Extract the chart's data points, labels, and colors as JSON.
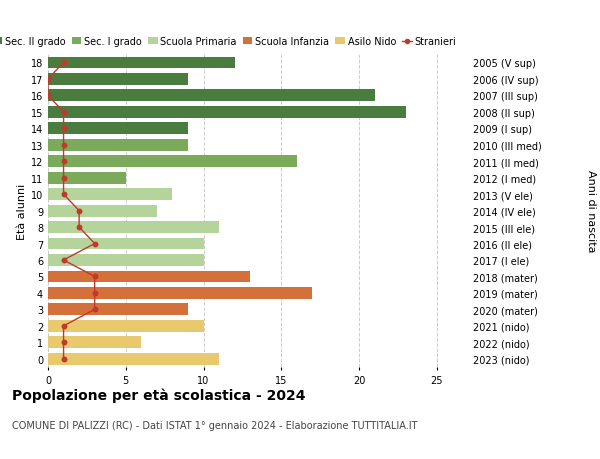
{
  "ages": [
    18,
    17,
    16,
    15,
    14,
    13,
    12,
    11,
    10,
    9,
    8,
    7,
    6,
    5,
    4,
    3,
    2,
    1,
    0
  ],
  "years": [
    "2005 (V sup)",
    "2006 (IV sup)",
    "2007 (III sup)",
    "2008 (II sup)",
    "2009 (I sup)",
    "2010 (III med)",
    "2011 (II med)",
    "2012 (I med)",
    "2013 (V ele)",
    "2014 (IV ele)",
    "2015 (III ele)",
    "2016 (II ele)",
    "2017 (I ele)",
    "2018 (mater)",
    "2019 (mater)",
    "2020 (mater)",
    "2021 (nido)",
    "2022 (nido)",
    "2023 (nido)"
  ],
  "bar_values": [
    12,
    9,
    21,
    23,
    9,
    9,
    16,
    5,
    8,
    7,
    11,
    10,
    10,
    13,
    17,
    9,
    10,
    6,
    11
  ],
  "bar_colors": [
    "#4a7c3f",
    "#4a7c3f",
    "#4a7c3f",
    "#4a7c3f",
    "#4a7c3f",
    "#7aaa5a",
    "#7aaa5a",
    "#7aaa5a",
    "#b5d49b",
    "#b5d49b",
    "#b5d49b",
    "#b5d49b",
    "#b5d49b",
    "#d4703a",
    "#d4703a",
    "#d4703a",
    "#e8c96e",
    "#e8c96e",
    "#e8c96e"
  ],
  "stranieri_x": [
    1,
    0,
    0,
    1,
    1,
    1,
    1,
    1,
    1,
    2,
    2,
    3,
    1,
    3,
    3,
    3,
    1,
    1,
    1
  ],
  "legend_labels": [
    "Sec. II grado",
    "Sec. I grado",
    "Scuola Primaria",
    "Scuola Infanzia",
    "Asilo Nido",
    "Stranieri"
  ],
  "legend_colors": [
    "#4a7c3f",
    "#7aaa5a",
    "#b5d49b",
    "#d4703a",
    "#e8c96e",
    "#c0392b"
  ],
  "stranieri_line_color": "#c0392b",
  "stranieri_dot_color": "#c0392b",
  "title": "Popolazione per età scolastica - 2024",
  "subtitle": "COMUNE DI PALIZZI (RC) - Dati ISTAT 1° gennaio 2024 - Elaborazione TUTTITALIA.IT",
  "ylabel_left": "Età alunni",
  "ylabel_right": "Anni di nascita",
  "xlim": [
    0,
    27
  ],
  "xticks": [
    0,
    5,
    10,
    15,
    20,
    25
  ],
  "bg_color": "#ffffff",
  "grid_color": "#cccccc",
  "title_fontsize": 10,
  "subtitle_fontsize": 7,
  "tick_fontsize": 7,
  "legend_fontsize": 7,
  "ylabel_fontsize": 8
}
